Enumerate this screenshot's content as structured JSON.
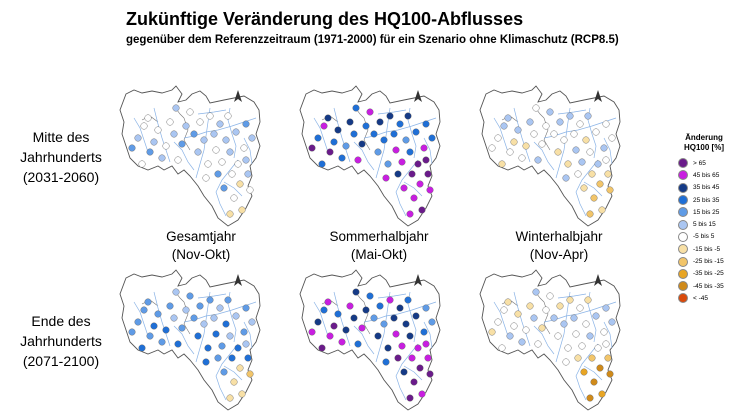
{
  "title": "Zukünftige Veränderung des HQ100-Abflusses",
  "subtitle": "gegenüber dem Referenzzeitraum (1971-2000) für ein Szenario ohne Klimaschutz (RCP8.5)",
  "rows": [
    {
      "line1": "Mitte des",
      "line2": "Jahrhunderts",
      "line3": "(2031-2060)"
    },
    {
      "line1": "Ende des",
      "line2": "Jahrhunderts",
      "line3": "(2071-2100)"
    }
  ],
  "columns": [
    {
      "line1": "Gesamtjahr",
      "line2": "(Nov-Okt)"
    },
    {
      "line1": "Sommerhalbjahr",
      "line2": "(Mai-Okt)"
    },
    {
      "line1": "Winterhalbjahr",
      "line2": "(Nov-Apr)"
    }
  ],
  "legend": {
    "title_line1": "Änderung",
    "title_line2": "HQ100 [%]",
    "items": [
      {
        "label": "> 65",
        "color": "#6a1b8a"
      },
      {
        "label": "45 bis 65",
        "color": "#c81ee0"
      },
      {
        "label": "35 bis 45",
        "color": "#153a86"
      },
      {
        "label": "25 bis 35",
        "color": "#1f6fd6"
      },
      {
        "label": "15 bis 25",
        "color": "#5f9be6"
      },
      {
        "label": "5 bis 15",
        "color": "#aac6f2"
      },
      {
        "label": "-5 bis 5",
        "color": "#ffffff"
      },
      {
        "label": "-15 bis -5",
        "color": "#f8e0a6"
      },
      {
        "label": "-25 bis -15",
        "color": "#f2c56a"
      },
      {
        "label": "-35 bis -25",
        "color": "#e8a524"
      },
      {
        "label": "-45 bis -35",
        "color": "#cf8a1a"
      },
      {
        "label": "< -45",
        "color": "#d94a0c"
      }
    ]
  },
  "maps": [
    {
      "id": "mid-year",
      "dominant_class": "5 bis 15",
      "pattern": "mixed-light"
    },
    {
      "id": "mid-summer",
      "dominant_class": "25 bis 35",
      "pattern": "strong-increase"
    },
    {
      "id": "mid-winter",
      "dominant_class": "-5 bis 5",
      "pattern": "light-decrease"
    },
    {
      "id": "end-year",
      "dominant_class": "15 bis 25",
      "pattern": "mixed-medium"
    },
    {
      "id": "end-summer",
      "dominant_class": "35 bis 45",
      "pattern": "strong-increase-end"
    },
    {
      "id": "end-winter",
      "dominant_class": "-5 bis 5",
      "pattern": "decrease-end"
    }
  ]
}
